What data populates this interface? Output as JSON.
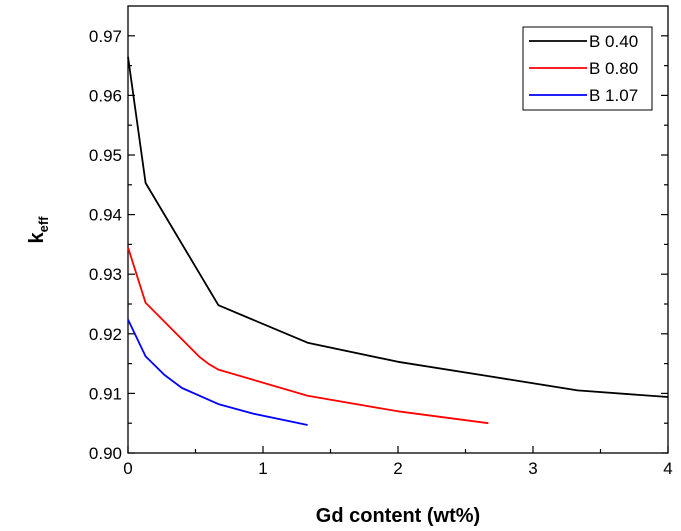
{
  "chart_data": {
    "type": "line",
    "xlabel": "Gd content (wt%)",
    "ylabel_main": "k",
    "ylabel_sub": "eff",
    "xlim": [
      0,
      4
    ],
    "ylim": [
      0.9,
      0.975
    ],
    "xticks": [
      0,
      1,
      2,
      3,
      4
    ],
    "xtick_labels": [
      "0",
      "1",
      "2",
      "3",
      "4"
    ],
    "yticks": [
      0.9,
      0.91,
      0.92,
      0.93,
      0.94,
      0.95,
      0.96,
      0.97
    ],
    "ytick_labels": [
      "0.90",
      "0.91",
      "0.92",
      "0.93",
      "0.94",
      "0.95",
      "0.96",
      "0.97"
    ],
    "grid": false,
    "legend_position": "top-right",
    "series": [
      {
        "name": "B 0.40",
        "color": "#000000",
        "x": [
          0,
          0.13,
          0.67,
          1.33,
          2.0,
          2.67,
          3.33,
          4.0
        ],
        "y": [
          0.9665,
          0.9453,
          0.9248,
          0.9185,
          0.9153,
          0.9129,
          0.9105,
          0.9094
        ]
      },
      {
        "name": "B 0.80",
        "color": "#ff0000",
        "x": [
          0,
          0.13,
          0.53,
          0.6,
          0.67,
          1.33,
          2.0,
          2.67
        ],
        "y": [
          0.9345,
          0.9252,
          0.9161,
          0.9149,
          0.914,
          0.9096,
          0.907,
          0.905
        ]
      },
      {
        "name": "B 1.07",
        "color": "#0000ff",
        "x": [
          0,
          0.13,
          0.27,
          0.4,
          0.67,
          0.93,
          1.33
        ],
        "y": [
          0.9224,
          0.9162,
          0.9131,
          0.9109,
          0.9082,
          0.9066,
          0.9047
        ]
      }
    ]
  }
}
